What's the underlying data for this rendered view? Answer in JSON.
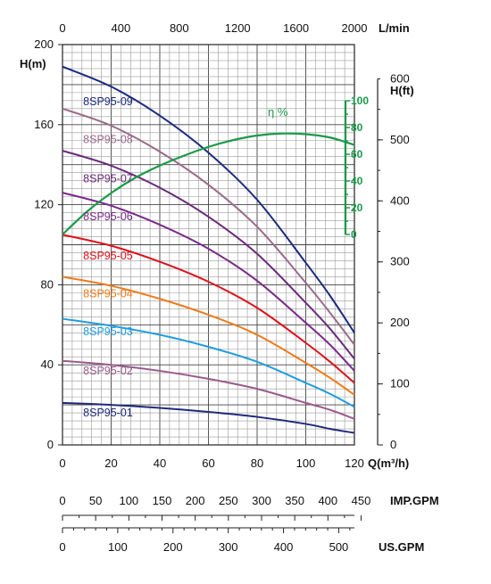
{
  "chart_data": {
    "type": "line",
    "x_unit": "Q(m³/h)",
    "y_unit": "H(m)",
    "top_axis_unit": "L/min",
    "right_axis_unit_top": "600",
    "right_axis_unit_label": "H(ft)",
    "imp_axis_unit": "IMP.GPM",
    "us_axis_unit": "US.GPM",
    "efficiency_label": "η %",
    "xlim": [
      0,
      120
    ],
    "ylim": [
      0,
      200
    ],
    "x_ticks": [
      "0",
      "20",
      "40",
      "60",
      "80",
      "100",
      "120"
    ],
    "y_ticks": [
      "0",
      "40",
      "80",
      "120",
      "160",
      "200"
    ],
    "top_ticks": [
      "0",
      "400",
      "800",
      "1200",
      "1600",
      "2000"
    ],
    "ft_ticks": [
      "0",
      "100",
      "200",
      "300",
      "400",
      "500"
    ],
    "eta_ticks": [
      "0",
      "20",
      "40",
      "60",
      "80",
      "100"
    ],
    "imp_ticks": [
      "0",
      "50",
      "100",
      "150",
      "200",
      "250",
      "300",
      "350",
      "400",
      "450"
    ],
    "us_ticks": [
      "0",
      "100",
      "200",
      "300",
      "400",
      "500"
    ],
    "grid": true,
    "series": [
      {
        "name": "8SP95-01",
        "color": "#1f2a7a",
        "label_x": 8.5,
        "label_y": 16.0,
        "points": [
          [
            0,
            21
          ],
          [
            20,
            20
          ],
          [
            40,
            18.5
          ],
          [
            60,
            16.5
          ],
          [
            80,
            14
          ],
          [
            100,
            10.5
          ],
          [
            110,
            8
          ],
          [
            120,
            6
          ]
        ]
      },
      {
        "name": "8SP95-02",
        "color": "#9a5a8a",
        "label_x": 8.5,
        "label_y": 37.0,
        "points": [
          [
            0,
            42
          ],
          [
            20,
            40
          ],
          [
            40,
            37
          ],
          [
            60,
            33
          ],
          [
            80,
            28
          ],
          [
            100,
            21
          ],
          [
            110,
            17.5
          ],
          [
            120,
            13
          ]
        ]
      },
      {
        "name": "8SP95-03",
        "color": "#1e9ee0",
        "label_x": 8.5,
        "label_y": 56.5,
        "points": [
          [
            0,
            63
          ],
          [
            20,
            59.5
          ],
          [
            40,
            55
          ],
          [
            60,
            49
          ],
          [
            80,
            41.5
          ],
          [
            100,
            31
          ],
          [
            110,
            25.5
          ],
          [
            120,
            19
          ]
        ]
      },
      {
        "name": "8SP95-04",
        "color": "#f07a18",
        "label_x": 8.5,
        "label_y": 75.5,
        "points": [
          [
            0,
            84
          ],
          [
            20,
            79.5
          ],
          [
            40,
            73
          ],
          [
            60,
            65
          ],
          [
            80,
            55
          ],
          [
            100,
            41
          ],
          [
            110,
            33.5
          ],
          [
            120,
            25
          ]
        ]
      },
      {
        "name": "8SP95-05",
        "color": "#e0101a",
        "label_x": 8.5,
        "label_y": 94.5,
        "points": [
          [
            0,
            105
          ],
          [
            20,
            99.5
          ],
          [
            40,
            91.5
          ],
          [
            60,
            81.5
          ],
          [
            80,
            68.5
          ],
          [
            100,
            51
          ],
          [
            110,
            41.5
          ],
          [
            120,
            31
          ]
        ]
      },
      {
        "name": "8SP95-06",
        "color": "#7a2a8a",
        "label_x": 8.5,
        "label_y": 114.0,
        "points": [
          [
            0,
            126
          ],
          [
            20,
            119.5
          ],
          [
            40,
            110
          ],
          [
            60,
            98
          ],
          [
            80,
            82
          ],
          [
            100,
            61
          ],
          [
            110,
            50
          ],
          [
            120,
            37
          ]
        ]
      },
      {
        "name": "8SP95-07",
        "color": "#6a2a7a",
        "label_x": 8.5,
        "label_y": 133.0,
        "points": [
          [
            0,
            147
          ],
          [
            20,
            139.5
          ],
          [
            40,
            128.5
          ],
          [
            60,
            114
          ],
          [
            80,
            95.5
          ],
          [
            100,
            71
          ],
          [
            110,
            58
          ],
          [
            120,
            43
          ]
        ]
      },
      {
        "name": "8SP95-08",
        "color": "#9a6a8a",
        "label_x": 8.5,
        "label_y": 152.5,
        "points": [
          [
            0,
            168
          ],
          [
            20,
            159.5
          ],
          [
            40,
            146.5
          ],
          [
            60,
            130
          ],
          [
            80,
            109
          ],
          [
            100,
            81
          ],
          [
            110,
            66
          ],
          [
            120,
            50
          ]
        ]
      },
      {
        "name": "8SP95-09",
        "color": "#1a2a80",
        "label_x": 8.5,
        "label_y": 171.5,
        "points": [
          [
            0,
            189
          ],
          [
            20,
            179
          ],
          [
            40,
            164.5
          ],
          [
            60,
            146
          ],
          [
            80,
            122.5
          ],
          [
            100,
            91
          ],
          [
            110,
            74.5
          ],
          [
            120,
            56
          ]
        ]
      }
    ],
    "efficiency": {
      "color": "#1a9a4a",
      "points": [
        [
          0,
          0
        ],
        [
          10,
          17
        ],
        [
          20,
          31
        ],
        [
          30,
          42.5
        ],
        [
          40,
          51.5
        ],
        [
          50,
          59
        ],
        [
          60,
          65.5
        ],
        [
          70,
          70.5
        ],
        [
          80,
          74
        ],
        [
          90,
          75.5
        ],
        [
          100,
          75
        ],
        [
          110,
          72.5
        ],
        [
          120,
          67
        ]
      ]
    }
  }
}
